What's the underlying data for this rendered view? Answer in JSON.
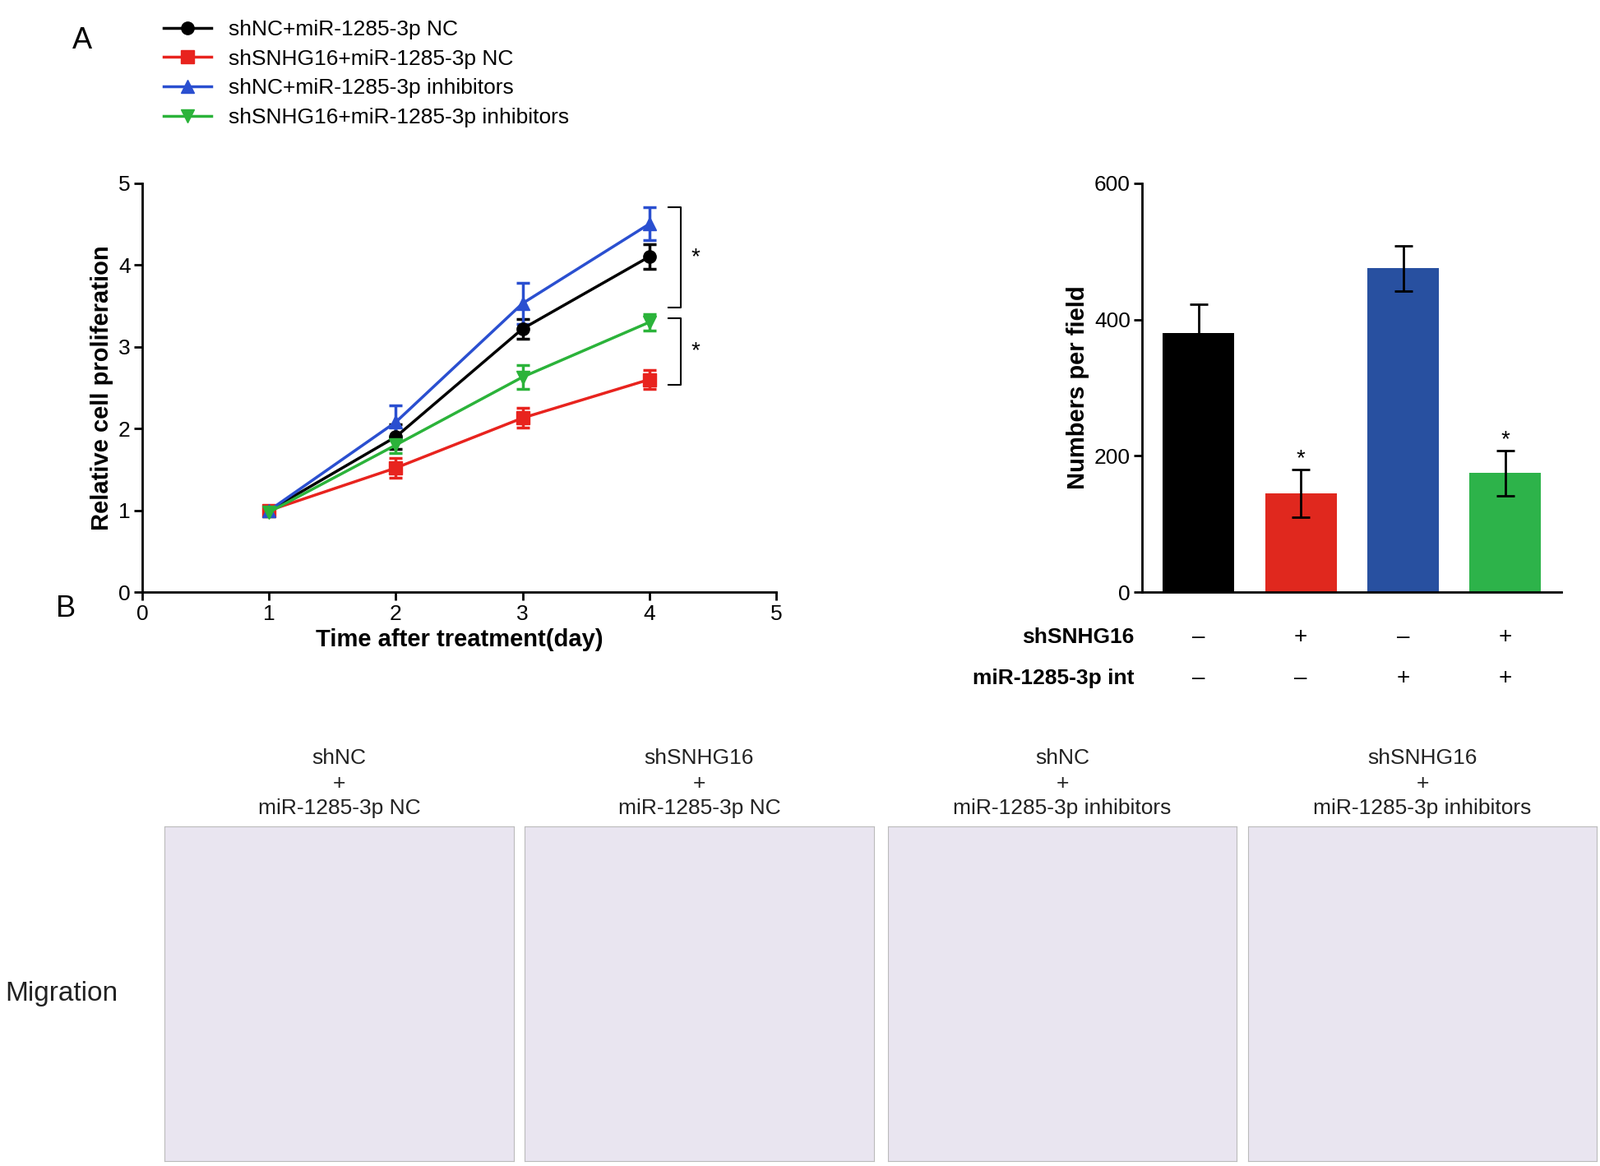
{
  "panel_labels": [
    "A",
    "B"
  ],
  "chart_data": [
    {
      "type": "line",
      "x": [
        1,
        2,
        3,
        4
      ],
      "xlabel": "Time after treatment(day)",
      "ylabel": "Relative cell proliferation",
      "xlim": [
        0,
        5
      ],
      "xticks": [
        0,
        1,
        2,
        3,
        4,
        5
      ],
      "ylim": [
        0,
        5
      ],
      "yticks": [
        0,
        1,
        2,
        3,
        4,
        5
      ],
      "legend": "upper left",
      "annotations": [
        "*",
        "*"
      ],
      "series": [
        {
          "name": "shNC+miR-1285-3p NC",
          "color": "#000000",
          "marker": "circle",
          "values": [
            1.0,
            1.9,
            3.22,
            4.1
          ],
          "errors": [
            0.05,
            0.15,
            0.12,
            0.15
          ]
        },
        {
          "name": "shSNHG16+miR-1285-3p NC",
          "color": "#e8231e",
          "marker": "square",
          "values": [
            1.0,
            1.52,
            2.13,
            2.6
          ],
          "errors": [
            0.05,
            0.12,
            0.12,
            0.12
          ]
        },
        {
          "name": "shNC+miR-1285-3p inhibitors",
          "color": "#2a4fd0",
          "marker": "triangle_up",
          "values": [
            1.0,
            2.08,
            3.53,
            4.5
          ],
          "errors": [
            0.05,
            0.2,
            0.25,
            0.2
          ]
        },
        {
          "name": "shSNHG16+miR-1285-3p inhibitors",
          "color": "#2bb33a",
          "marker": "triangle_down",
          "values": [
            0.98,
            1.8,
            2.63,
            3.3
          ],
          "errors": [
            0.05,
            0.1,
            0.15,
            0.1
          ]
        }
      ]
    },
    {
      "type": "bar",
      "categories": [
        null,
        null,
        null,
        null
      ],
      "values": [
        380,
        145,
        475,
        175
      ],
      "errors": [
        42,
        35,
        33,
        33
      ],
      "colors": [
        "#000000",
        "#e0281e",
        "#2850a0",
        "#2db34a"
      ],
      "ylabel": "Numbers per field",
      "ylim": [
        0,
        600
      ],
      "yticks": [
        0,
        200,
        400,
        600
      ],
      "significance": [
        null,
        "*",
        null,
        "*"
      ],
      "condition_table": {
        "rows": [
          {
            "label": "shSNHG16",
            "marks": [
              "–",
              "+",
              "–",
              "+"
            ]
          },
          {
            "label": "miR-1285-3p int",
            "marks": [
              "–",
              "–",
              "+",
              "+"
            ]
          }
        ]
      }
    }
  ],
  "images": {
    "row_label": "Migration",
    "titles": [
      "shNC\n+\nmiR-1285-3p NC",
      "shSNHG16\n+\nmiR-1285-3p NC",
      "shNC\n+\nmiR-1285-3p inhibitors",
      "shSNHG16\n+\nmiR-1285-3p inhibitors"
    ]
  }
}
